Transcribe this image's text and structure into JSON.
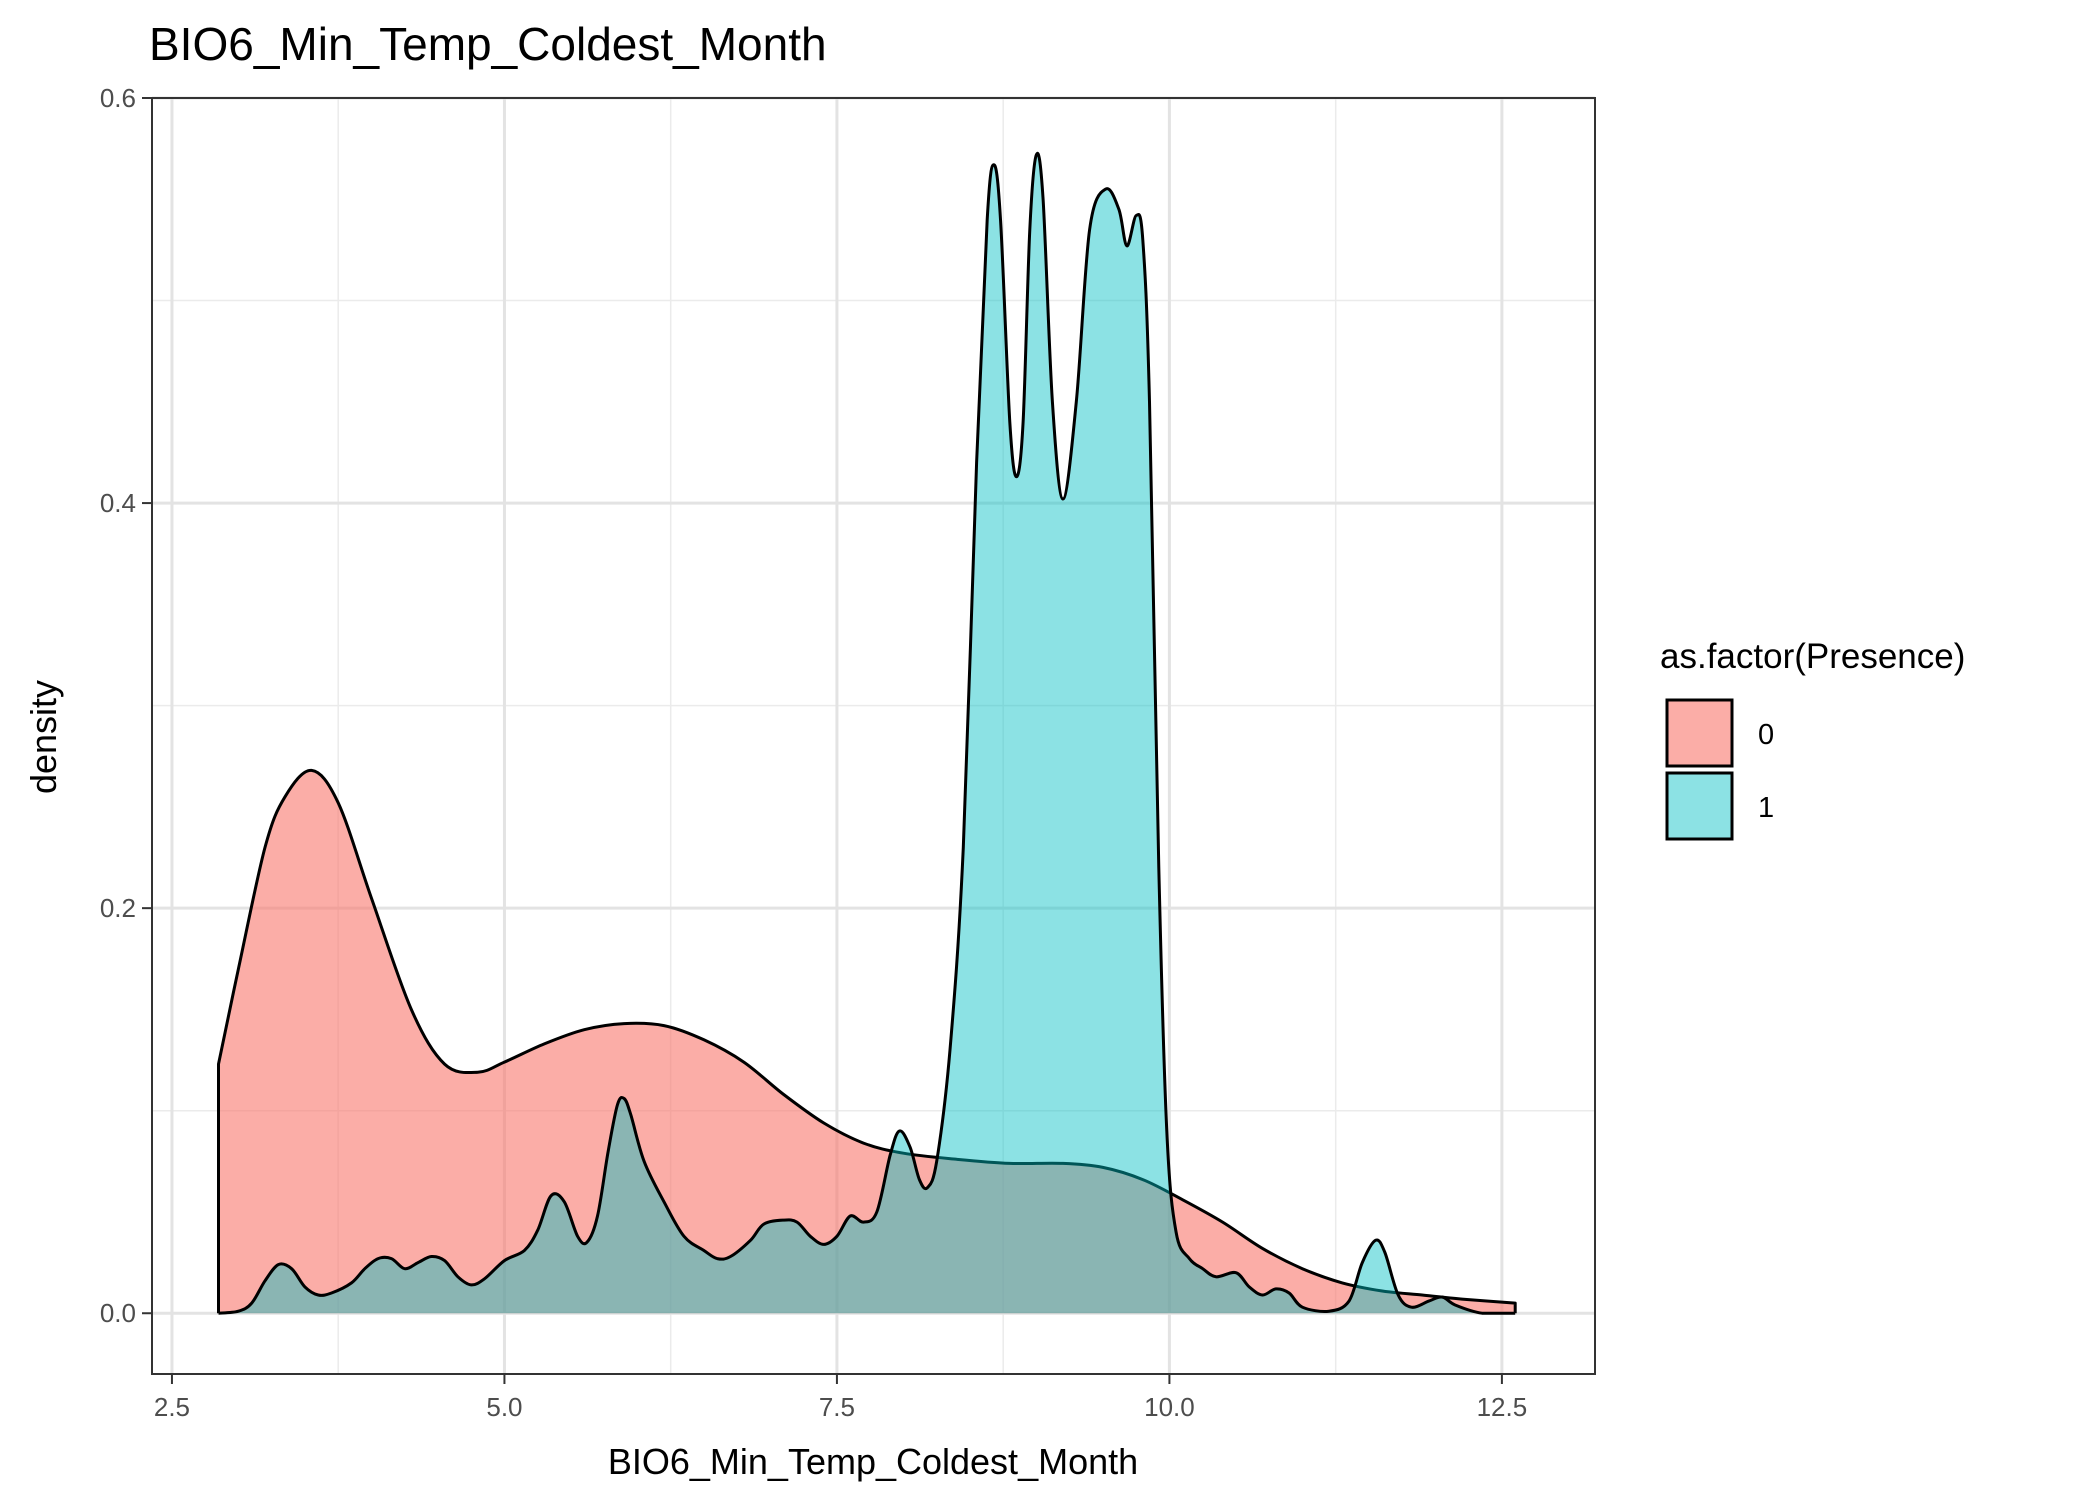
{
  "chart_data": {
    "type": "area",
    "title": "BIO6_Min_Temp_Coldest_Month",
    "xlabel": "BIO6_Min_Temp_Coldest_Month",
    "ylabel": "density",
    "xlim": [
      2.35,
      13.2
    ],
    "ylim": [
      -0.03,
      0.6
    ],
    "x_ticks": [
      2.5,
      5.0,
      7.5,
      10.0,
      12.5
    ],
    "x_tick_labels": [
      "2.5",
      "5.0",
      "7.5",
      "10.0",
      "12.5"
    ],
    "y_ticks": [
      0.0,
      0.2,
      0.4,
      0.6
    ],
    "y_tick_labels": [
      "0.0",
      "0.2",
      "0.4",
      "0.6"
    ],
    "grid": true,
    "legend": {
      "title": "as.factor(Presence)",
      "position": "right",
      "entries": [
        {
          "label": "0",
          "color": "#F8766D"
        },
        {
          "label": "1",
          "color": "#00BFC4"
        }
      ]
    },
    "series": [
      {
        "name": "0",
        "color": "#F8766D",
        "points": [
          [
            2.85,
            0.123
          ],
          [
            3.0,
            0.17
          ],
          [
            3.2,
            0.23
          ],
          [
            3.35,
            0.255
          ],
          [
            3.55,
            0.268
          ],
          [
            3.75,
            0.252
          ],
          [
            4.0,
            0.205
          ],
          [
            4.3,
            0.15
          ],
          [
            4.55,
            0.123
          ],
          [
            4.8,
            0.119
          ],
          [
            5.0,
            0.124
          ],
          [
            5.3,
            0.133
          ],
          [
            5.6,
            0.14
          ],
          [
            5.9,
            0.143
          ],
          [
            6.2,
            0.142
          ],
          [
            6.5,
            0.135
          ],
          [
            6.8,
            0.124
          ],
          [
            7.1,
            0.108
          ],
          [
            7.4,
            0.094
          ],
          [
            7.7,
            0.084
          ],
          [
            8.0,
            0.079
          ],
          [
            8.4,
            0.076
          ],
          [
            8.8,
            0.074
          ],
          [
            9.2,
            0.074
          ],
          [
            9.5,
            0.072
          ],
          [
            9.8,
            0.066
          ],
          [
            10.1,
            0.056
          ],
          [
            10.4,
            0.045
          ],
          [
            10.7,
            0.032
          ],
          [
            11.0,
            0.022
          ],
          [
            11.3,
            0.015
          ],
          [
            11.6,
            0.011
          ],
          [
            11.9,
            0.009
          ],
          [
            12.2,
            0.007
          ],
          [
            12.6,
            0.005
          ]
        ]
      },
      {
        "name": "1",
        "color": "#00BFC4",
        "points": [
          [
            2.85,
            0.0
          ],
          [
            3.0,
            0.001
          ],
          [
            3.1,
            0.005
          ],
          [
            3.2,
            0.016
          ],
          [
            3.3,
            0.024
          ],
          [
            3.4,
            0.022
          ],
          [
            3.5,
            0.013
          ],
          [
            3.6,
            0.009
          ],
          [
            3.7,
            0.01
          ],
          [
            3.85,
            0.015
          ],
          [
            3.95,
            0.022
          ],
          [
            4.05,
            0.027
          ],
          [
            4.15,
            0.027
          ],
          [
            4.25,
            0.022
          ],
          [
            4.35,
            0.025
          ],
          [
            4.45,
            0.028
          ],
          [
            4.55,
            0.026
          ],
          [
            4.65,
            0.018
          ],
          [
            4.75,
            0.014
          ],
          [
            4.85,
            0.017
          ],
          [
            5.0,
            0.026
          ],
          [
            5.15,
            0.031
          ],
          [
            5.25,
            0.041
          ],
          [
            5.35,
            0.058
          ],
          [
            5.45,
            0.055
          ],
          [
            5.55,
            0.038
          ],
          [
            5.62,
            0.035
          ],
          [
            5.7,
            0.048
          ],
          [
            5.78,
            0.08
          ],
          [
            5.85,
            0.103
          ],
          [
            5.9,
            0.106
          ],
          [
            5.95,
            0.098
          ],
          [
            6.05,
            0.075
          ],
          [
            6.2,
            0.055
          ],
          [
            6.35,
            0.038
          ],
          [
            6.5,
            0.031
          ],
          [
            6.6,
            0.027
          ],
          [
            6.7,
            0.028
          ],
          [
            6.85,
            0.036
          ],
          [
            6.95,
            0.044
          ],
          [
            7.1,
            0.046
          ],
          [
            7.2,
            0.045
          ],
          [
            7.3,
            0.038
          ],
          [
            7.4,
            0.034
          ],
          [
            7.5,
            0.038
          ],
          [
            7.6,
            0.048
          ],
          [
            7.7,
            0.045
          ],
          [
            7.8,
            0.05
          ],
          [
            7.9,
            0.078
          ],
          [
            7.97,
            0.09
          ],
          [
            8.05,
            0.082
          ],
          [
            8.12,
            0.066
          ],
          [
            8.18,
            0.062
          ],
          [
            8.25,
            0.075
          ],
          [
            8.35,
            0.13
          ],
          [
            8.45,
            0.23
          ],
          [
            8.55,
            0.42
          ],
          [
            8.63,
            0.54
          ],
          [
            8.68,
            0.567
          ],
          [
            8.73,
            0.54
          ],
          [
            8.8,
            0.44
          ],
          [
            8.85,
            0.413
          ],
          [
            8.9,
            0.44
          ],
          [
            8.95,
            0.535
          ],
          [
            9.0,
            0.572
          ],
          [
            9.05,
            0.55
          ],
          [
            9.12,
            0.45
          ],
          [
            9.2,
            0.402
          ],
          [
            9.3,
            0.45
          ],
          [
            9.4,
            0.535
          ],
          [
            9.52,
            0.555
          ],
          [
            9.62,
            0.545
          ],
          [
            9.68,
            0.527
          ],
          [
            9.75,
            0.542
          ],
          [
            9.8,
            0.53
          ],
          [
            9.85,
            0.45
          ],
          [
            9.92,
            0.22
          ],
          [
            9.98,
            0.09
          ],
          [
            10.05,
            0.04
          ],
          [
            10.15,
            0.027
          ],
          [
            10.25,
            0.022
          ],
          [
            10.35,
            0.018
          ],
          [
            10.5,
            0.02
          ],
          [
            10.6,
            0.013
          ],
          [
            10.7,
            0.009
          ],
          [
            10.8,
            0.012
          ],
          [
            10.9,
            0.01
          ],
          [
            11.0,
            0.003
          ],
          [
            11.2,
            0.001
          ],
          [
            11.35,
            0.006
          ],
          [
            11.45,
            0.025
          ],
          [
            11.55,
            0.036
          ],
          [
            11.62,
            0.03
          ],
          [
            11.72,
            0.009
          ],
          [
            11.82,
            0.003
          ],
          [
            11.95,
            0.006
          ],
          [
            12.05,
            0.008
          ],
          [
            12.15,
            0.004
          ],
          [
            12.35,
            0.0
          ],
          [
            12.6,
            0.0
          ]
        ]
      }
    ]
  }
}
